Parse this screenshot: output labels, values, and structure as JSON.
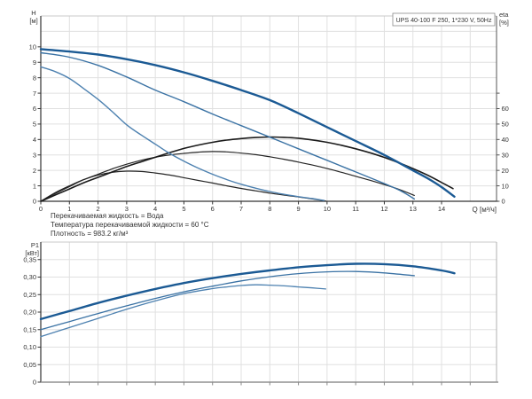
{
  "page": {
    "background": "#ffffff"
  },
  "colors": {
    "speed3_blue": "#1b5a94",
    "speed2_blue": "#3a72a4",
    "speed1_blue": "#4d81b0",
    "eta_black": "#1a1a1a",
    "grid_gray": "#e0e0e0",
    "axis_dark": "#333333",
    "frame_gray": "#c8c8c8",
    "text_gray": "#333333"
  },
  "chart_data": [
    {
      "type": "line",
      "title": "UPS 40-100 F 250, 1*230 V, 50Hz",
      "x_axis": {
        "label": "Q [м³/ч]",
        "min": 0,
        "max": 15.92,
        "ticks": [
          0,
          1,
          2,
          3,
          4,
          5,
          6,
          7,
          8,
          9,
          10,
          11,
          12,
          13,
          14
        ],
        "tick_labels": [
          "0",
          "1",
          "2",
          "3",
          "4",
          "5",
          "6",
          "7",
          "8",
          "9",
          "10",
          "11",
          "12",
          "13",
          "14"
        ]
      },
      "y_left": {
        "label_line1": "H",
        "label_line2": "[м]",
        "min": 0,
        "max": 12,
        "ticks": [
          0,
          1,
          2,
          3,
          4,
          5,
          6,
          7,
          8,
          9,
          10
        ],
        "tick_labels": [
          "0",
          "1",
          "2",
          "3",
          "4",
          "5",
          "6",
          "7",
          "8",
          "9",
          "10"
        ]
      },
      "y_right": {
        "label_line1": "eta",
        "label_line2": "[%]",
        "min": 0,
        "max": 120,
        "ticks": [
          0,
          10,
          20,
          30,
          40,
          50,
          60,
          70
        ],
        "tick_labels": [
          "0",
          "10",
          "20",
          "30",
          "40",
          "50",
          "60",
          ""
        ]
      },
      "notes": [
        "Перекачиваемая жидкость = Вода",
        "Температура перекачиваемой жидкости = 60 °C",
        "Плотность = 983.2 кг/м³"
      ],
      "series": [
        {
          "name": "eta-speed1",
          "axis": "right",
          "color": "#242424",
          "width": 1.2,
          "points": [
            [
              0,
              0
            ],
            [
              0.5,
              5.5
            ],
            [
              1,
              10
            ],
            [
              1.5,
              14
            ],
            [
              2,
              17
            ],
            [
              2.5,
              18.8
            ],
            [
              3,
              19.5
            ],
            [
              3.5,
              19.3
            ],
            [
              4,
              18.3
            ],
            [
              4.5,
              17
            ],
            [
              5,
              15.3
            ],
            [
              5.5,
              13.5
            ],
            [
              6,
              11.8
            ],
            [
              6.5,
              10
            ],
            [
              7,
              8.3
            ],
            [
              7.5,
              6.8
            ],
            [
              8,
              5.3
            ],
            [
              8.5,
              4
            ],
            [
              9,
              2.8
            ],
            [
              9.5,
              1.5
            ],
            [
              9.95,
              0.2
            ]
          ]
        },
        {
          "name": "eta-speed2",
          "axis": "right",
          "color": "#242424",
          "width": 1.2,
          "points": [
            [
              0,
              0
            ],
            [
              0.5,
              5
            ],
            [
              1,
              9.5
            ],
            [
              1.5,
              14
            ],
            [
              2,
              17.5
            ],
            [
              2.5,
              21
            ],
            [
              3,
              24
            ],
            [
              3.5,
              26.5
            ],
            [
              4,
              28.5
            ],
            [
              4.5,
              30
            ],
            [
              5,
              31
            ],
            [
              5.5,
              31.8
            ],
            [
              6,
              32.2
            ],
            [
              6.5,
              32
            ],
            [
              7,
              31.2
            ],
            [
              7.5,
              30.2
            ],
            [
              8,
              28.8
            ],
            [
              8.5,
              27.2
            ],
            [
              9,
              25.4
            ],
            [
              9.5,
              23.4
            ],
            [
              10,
              21.2
            ],
            [
              10.5,
              18.8
            ],
            [
              11,
              16.2
            ],
            [
              11.5,
              13.6
            ],
            [
              12,
              10.8
            ],
            [
              12.5,
              7.8
            ],
            [
              13.05,
              3.8
            ]
          ]
        },
        {
          "name": "eta-speed3",
          "axis": "right",
          "color": "#1a1a1a",
          "width": 1.6,
          "points": [
            [
              0,
              0
            ],
            [
              0.5,
              4
            ],
            [
              1,
              8
            ],
            [
              1.5,
              12
            ],
            [
              2,
              15.5
            ],
            [
              2.5,
              19
            ],
            [
              3,
              22.5
            ],
            [
              3.5,
              25.5
            ],
            [
              4,
              28.5
            ],
            [
              4.5,
              31.5
            ],
            [
              5,
              34.2
            ],
            [
              5.5,
              36.4
            ],
            [
              6,
              38.2
            ],
            [
              6.5,
              39.6
            ],
            [
              7,
              40.6
            ],
            [
              7.5,
              41.3
            ],
            [
              8,
              41.6
            ],
            [
              8.5,
              41.4
            ],
            [
              9,
              40.8
            ],
            [
              9.5,
              39.7
            ],
            [
              10,
              38.2
            ],
            [
              10.5,
              36.3
            ],
            [
              11,
              34
            ],
            [
              11.5,
              31.4
            ],
            [
              12,
              28.4
            ],
            [
              12.5,
              25
            ],
            [
              13,
              21.2
            ],
            [
              13.5,
              17
            ],
            [
              14,
              12.2
            ],
            [
              14.4,
              8.2
            ]
          ]
        },
        {
          "name": "head-speed1",
          "axis": "left",
          "color": "#4d81b0",
          "width": 1.4,
          "points": [
            [
              0,
              8.7
            ],
            [
              0.5,
              8.4
            ],
            [
              1,
              7.95
            ],
            [
              1.5,
              7.3
            ],
            [
              2,
              6.6
            ],
            [
              2.5,
              5.8
            ],
            [
              3,
              4.95
            ],
            [
              3.5,
              4.3
            ],
            [
              4,
              3.7
            ],
            [
              4.5,
              3.1
            ],
            [
              5,
              2.6
            ],
            [
              5.5,
              2.15
            ],
            [
              6,
              1.75
            ],
            [
              6.5,
              1.4
            ],
            [
              7,
              1.1
            ],
            [
              7.5,
              0.85
            ],
            [
              8,
              0.63
            ],
            [
              8.5,
              0.45
            ],
            [
              9,
              0.3
            ],
            [
              9.5,
              0.17
            ],
            [
              9.9,
              0.05
            ]
          ]
        },
        {
          "name": "head-speed2",
          "axis": "left",
          "color": "#3a72a4",
          "width": 1.4,
          "points": [
            [
              0,
              9.62
            ],
            [
              1,
              9.33
            ],
            [
              2,
              8.8
            ],
            [
              3,
              8.05
            ],
            [
              4,
              7.2
            ],
            [
              5,
              6.45
            ],
            [
              6,
              5.65
            ],
            [
              7,
              4.9
            ],
            [
              8,
              4.15
            ],
            [
              9,
              3.4
            ],
            [
              10,
              2.65
            ],
            [
              11,
              1.9
            ],
            [
              12,
              1.15
            ],
            [
              12.6,
              0.65
            ],
            [
              13.05,
              0.15
            ]
          ]
        },
        {
          "name": "head-speed3",
          "axis": "left",
          "color": "#1b5a94",
          "width": 2.4,
          "points": [
            [
              0,
              9.85
            ],
            [
              1,
              9.7
            ],
            [
              2,
              9.5
            ],
            [
              3,
              9.2
            ],
            [
              4,
              8.82
            ],
            [
              5,
              8.35
            ],
            [
              6,
              7.8
            ],
            [
              7,
              7.2
            ],
            [
              8,
              6.55
            ],
            [
              9,
              5.7
            ],
            [
              10,
              4.8
            ],
            [
              11,
              3.9
            ],
            [
              12,
              3.0
            ],
            [
              13,
              2.0
            ],
            [
              13.5,
              1.5
            ],
            [
              14,
              0.92
            ],
            [
              14.45,
              0.3
            ]
          ]
        }
      ]
    },
    {
      "type": "line",
      "x_axis": {
        "min": 0,
        "max": 15.92,
        "ticks": [
          1,
          2,
          3,
          4,
          5,
          6,
          7,
          8,
          9,
          10,
          11,
          12,
          13,
          14,
          15
        ],
        "tick_labels": []
      },
      "y_left": {
        "label_line1": "P1",
        "label_line2": "[кВт]",
        "min": 0,
        "max": 0.4,
        "ticks": [
          0,
          0.05,
          0.1,
          0.15,
          0.2,
          0.25,
          0.3,
          0.35
        ],
        "tick_labels": [
          "0",
          "0,05",
          "0,10",
          "0,15",
          "0,20",
          "0,25",
          "0,30",
          "0,35"
        ]
      },
      "series": [
        {
          "name": "p1-speed1",
          "axis": "left",
          "color": "#4d81b0",
          "width": 1.3,
          "points": [
            [
              0,
              0.13
            ],
            [
              1,
              0.156
            ],
            [
              2,
              0.182
            ],
            [
              3,
              0.208
            ],
            [
              4,
              0.232
            ],
            [
              5,
              0.253
            ],
            [
              6,
              0.267
            ],
            [
              6.5,
              0.272
            ],
            [
              7,
              0.276
            ],
            [
              7.5,
              0.278
            ],
            [
              8,
              0.277
            ],
            [
              8.5,
              0.275
            ],
            [
              9,
              0.272
            ],
            [
              9.5,
              0.269
            ],
            [
              9.95,
              0.266
            ]
          ]
        },
        {
          "name": "p1-speed2",
          "axis": "left",
          "color": "#3a72a4",
          "width": 1.3,
          "points": [
            [
              0,
              0.15
            ],
            [
              1,
              0.173
            ],
            [
              2,
              0.196
            ],
            [
              3,
              0.218
            ],
            [
              4,
              0.239
            ],
            [
              5,
              0.258
            ],
            [
              6,
              0.274
            ],
            [
              7,
              0.289
            ],
            [
              8,
              0.301
            ],
            [
              9,
              0.31
            ],
            [
              10,
              0.315
            ],
            [
              11,
              0.316
            ],
            [
              12,
              0.312
            ],
            [
              13.05,
              0.304
            ]
          ]
        },
        {
          "name": "p1-speed3",
          "axis": "left",
          "color": "#1b5a94",
          "width": 2.4,
          "points": [
            [
              0,
              0.18
            ],
            [
              1,
              0.203
            ],
            [
              2,
              0.226
            ],
            [
              3,
              0.247
            ],
            [
              4,
              0.266
            ],
            [
              5,
              0.283
            ],
            [
              6,
              0.297
            ],
            [
              7,
              0.309
            ],
            [
              8,
              0.319
            ],
            [
              9,
              0.328
            ],
            [
              10,
              0.334
            ],
            [
              11,
              0.338
            ],
            [
              12,
              0.337
            ],
            [
              13,
              0.331
            ],
            [
              14,
              0.319
            ],
            [
              14.45,
              0.311
            ]
          ]
        }
      ]
    }
  ]
}
